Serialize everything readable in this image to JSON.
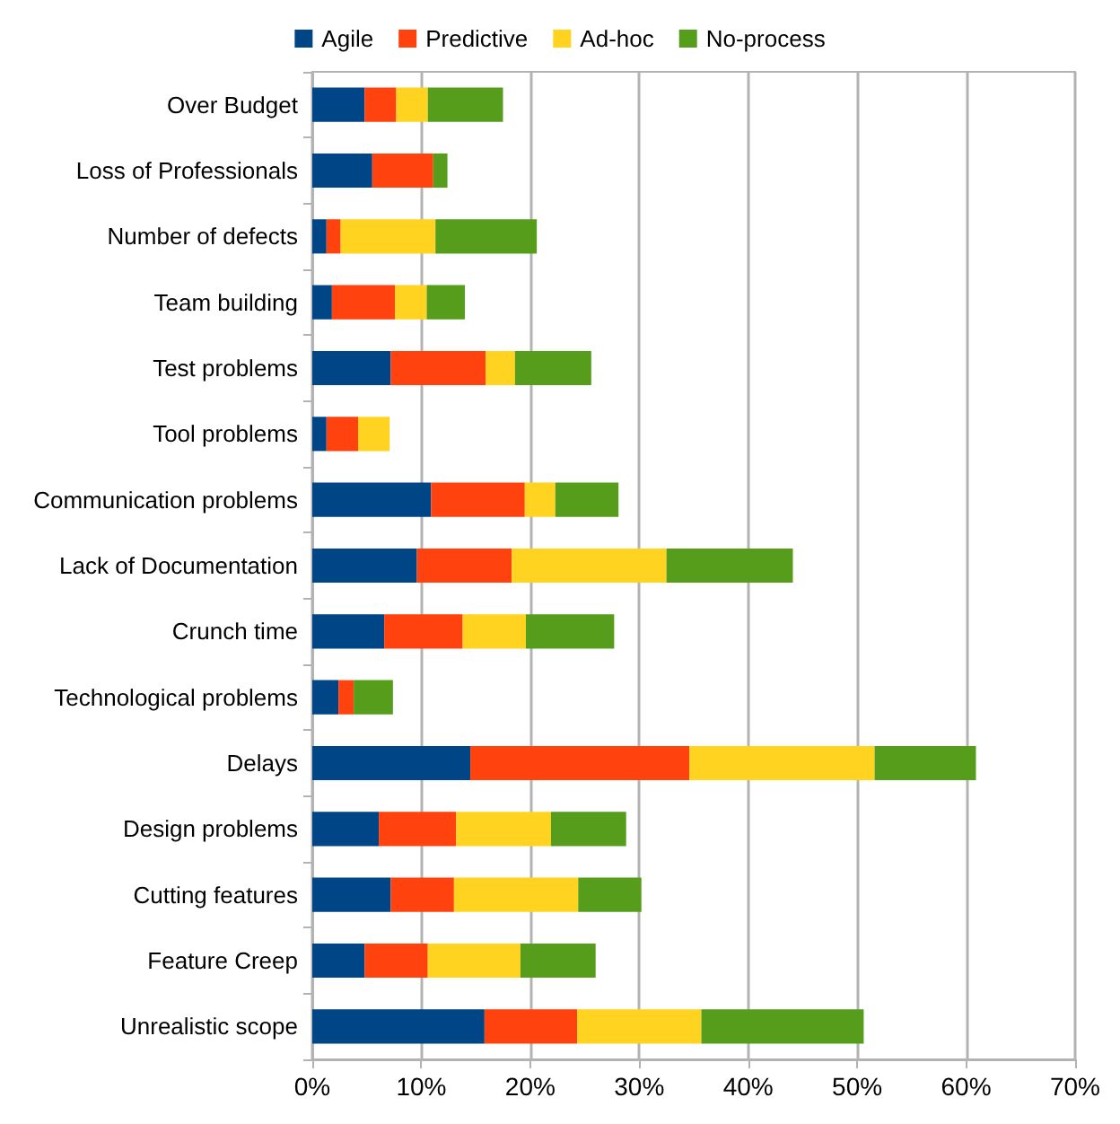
{
  "chart_data": {
    "type": "bar",
    "orientation": "horizontal",
    "stacked": true,
    "legend": "top",
    "grid": "x",
    "categories": [
      "Over Budget",
      "Loss of Professionals",
      "Number of defects",
      "Team building",
      "Test problems",
      "Tool problems",
      "Communication problems",
      "Lack of Documentation",
      "Crunch time",
      "Technological problems",
      "Delays",
      "Design problems",
      "Cutting features",
      "Feature Creep",
      "Unrealistic scope"
    ],
    "series": [
      {
        "name": "Agile",
        "color": "#004586",
        "values": [
          4.8,
          5.5,
          1.3,
          1.8,
          7.2,
          1.3,
          10.9,
          9.6,
          6.6,
          2.4,
          14.5,
          6.1,
          7.2,
          4.8,
          15.8
        ]
      },
      {
        "name": "Predictive",
        "color": "#ff420e",
        "values": [
          2.9,
          5.6,
          1.3,
          5.8,
          8.7,
          2.9,
          8.6,
          8.7,
          7.2,
          1.4,
          20.1,
          7.1,
          5.8,
          5.8,
          8.5
        ]
      },
      {
        "name": "Ad-hoc",
        "color": "#ffd320",
        "values": [
          2.9,
          0,
          8.7,
          2.9,
          2.7,
          2.9,
          2.8,
          14.2,
          5.8,
          0,
          17.0,
          8.7,
          11.4,
          8.5,
          11.4
        ]
      },
      {
        "name": "No-process",
        "color": "#579d1c",
        "values": [
          6.9,
          1.3,
          9.3,
          3.5,
          7.0,
          0,
          5.8,
          11.6,
          8.1,
          3.6,
          9.3,
          6.9,
          5.8,
          6.9,
          14.9
        ]
      }
    ],
    "xlim": [
      0,
      70
    ],
    "xticks": [
      {
        "value": 0,
        "label": "0%"
      },
      {
        "value": 10,
        "label": "10%"
      },
      {
        "value": 20,
        "label": "20%"
      },
      {
        "value": 30,
        "label": "30%"
      },
      {
        "value": 40,
        "label": "40%"
      },
      {
        "value": 50,
        "label": "50%"
      },
      {
        "value": 60,
        "label": "60%"
      },
      {
        "value": 70,
        "label": "70%"
      }
    ]
  }
}
